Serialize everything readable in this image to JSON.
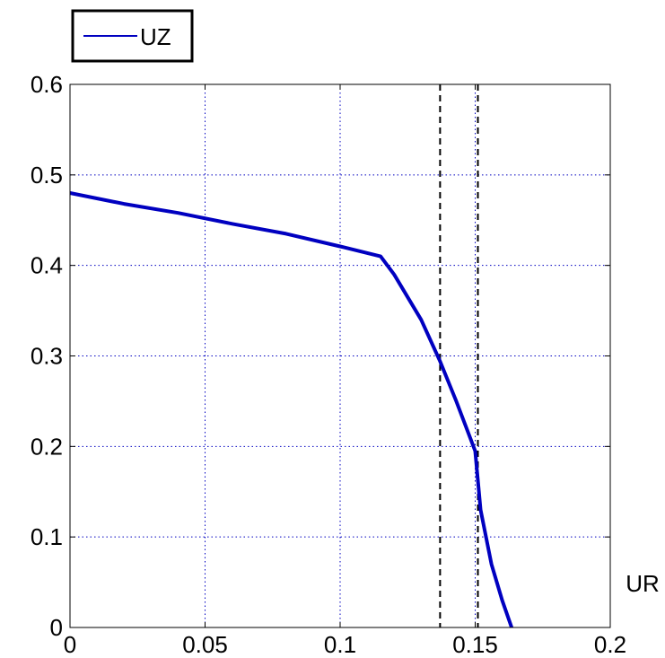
{
  "chart_data": {
    "type": "line",
    "xlabel": "UR",
    "ylabel": "",
    "xlim": [
      0,
      0.2
    ],
    "ylim": [
      0,
      0.6
    ],
    "x_ticks": [
      0,
      0.05,
      0.1,
      0.15,
      0.2
    ],
    "x_tick_labels": [
      "0",
      "0.05",
      "0.1",
      "0.15",
      "0.2"
    ],
    "y_ticks": [
      0,
      0.1,
      0.2,
      0.3,
      0.4,
      0.5,
      0.6
    ],
    "y_tick_labels": [
      "0",
      "0.1",
      "0.2",
      "0.3",
      "0.4",
      "0.5",
      "0.6"
    ],
    "grid": true,
    "legend_position": "top-left, above plot",
    "series": [
      {
        "name": "UZ",
        "color": "#0000c0",
        "x": [
          0,
          0.02,
          0.04,
          0.06,
          0.08,
          0.1,
          0.115,
          0.12,
          0.13,
          0.137,
          0.143,
          0.15,
          0.152,
          0.156,
          0.16,
          0.1635
        ],
        "y": [
          0.48,
          0.468,
          0.458,
          0.446,
          0.435,
          0.421,
          0.41,
          0.39,
          0.34,
          0.294,
          0.25,
          0.195,
          0.13,
          0.07,
          0.03,
          0.0
        ]
      }
    ],
    "reference_lines": [
      {
        "orientation": "vertical",
        "x": 0.137,
        "style": "dashed",
        "color": "#000000"
      },
      {
        "orientation": "vertical",
        "x": 0.151,
        "style": "dashed",
        "color": "#000000"
      }
    ]
  },
  "colors": {
    "grid": "#0000c0",
    "frame": "#000000",
    "background": "#ffffff"
  }
}
